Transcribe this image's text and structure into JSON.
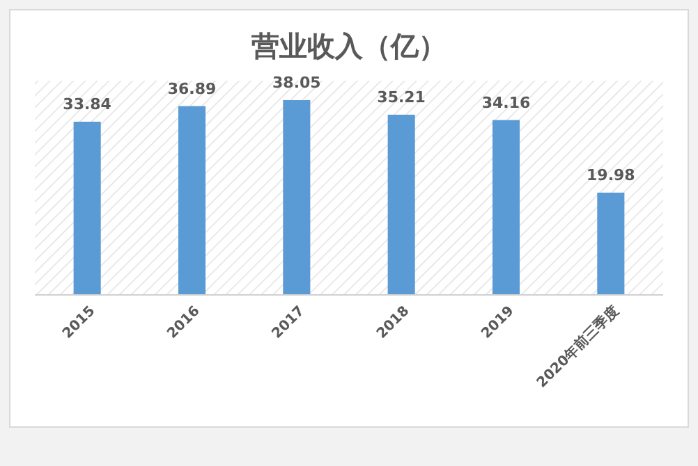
{
  "chart_data": {
    "type": "bar",
    "title": "营业收入（亿）",
    "categories": [
      "2015",
      "2016",
      "2017",
      "2018",
      "2019",
      "2020年前三季度"
    ],
    "values": [
      33.84,
      36.89,
      38.05,
      35.21,
      34.16,
      19.98
    ],
    "color": "#5b9bd5",
    "data_labels": true
  }
}
